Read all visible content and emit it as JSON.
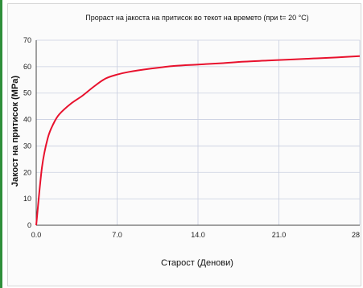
{
  "chart_data": {
    "type": "line",
    "title": "Прораст на јакоста на притисок во текот на времето (при t= 20 °C)",
    "xlabel": "Старост (Денови)",
    "ylabel": "Јакост на притисок (MPa)",
    "xlim": [
      0,
      28
    ],
    "ylim": [
      0,
      70
    ],
    "x_ticks": [
      "0.0",
      "7.0",
      "14.0",
      "21.0",
      "28"
    ],
    "y_ticks": [
      "0",
      "10",
      "20",
      "30",
      "40",
      "50",
      "60",
      "70"
    ],
    "grid": true,
    "series": [
      {
        "color": "#e8112d",
        "x": [
          0,
          0.5,
          1,
          1.5,
          2,
          3,
          4,
          5,
          6,
          7,
          8,
          10,
          12,
          14,
          16,
          18,
          20,
          22,
          24,
          26,
          28
        ],
        "y": [
          0,
          22,
          33,
          38.5,
          42,
          46,
          49,
          52.5,
          55.5,
          57,
          58,
          59.3,
          60.3,
          60.8,
          61.3,
          61.9,
          62.3,
          62.7,
          63.1,
          63.5,
          64
        ]
      }
    ]
  }
}
